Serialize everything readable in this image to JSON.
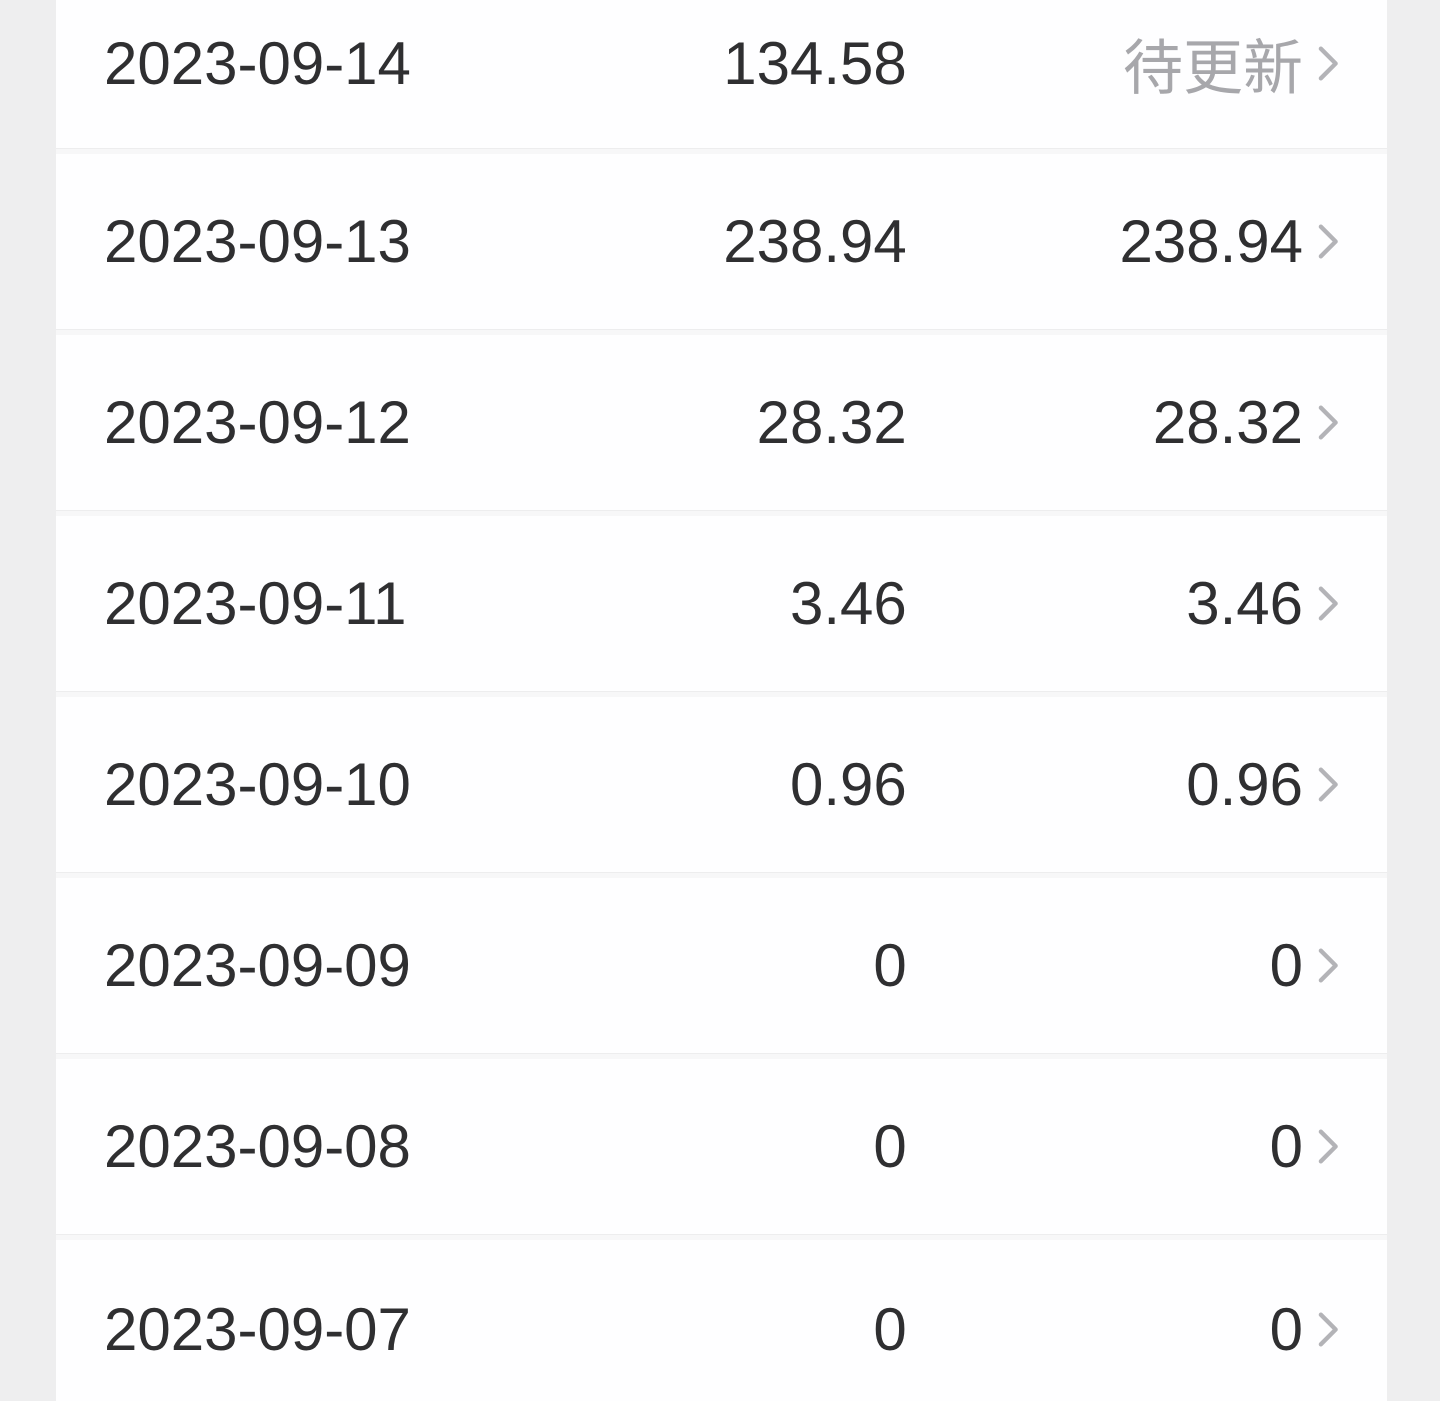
{
  "list": {
    "name": "daily-amount-list",
    "rows": [
      {
        "date": "2023-09-14",
        "amount": "134.58",
        "settled": "待更新",
        "pending": true
      },
      {
        "date": "2023-09-13",
        "amount": "238.94",
        "settled": "238.94",
        "pending": false
      },
      {
        "date": "2023-09-12",
        "amount": "28.32",
        "settled": "28.32",
        "pending": false
      },
      {
        "date": "2023-09-11",
        "amount": "3.46",
        "settled": "3.46",
        "pending": false
      },
      {
        "date": "2023-09-10",
        "amount": "0.96",
        "settled": "0.96",
        "pending": false
      },
      {
        "date": "2023-09-09",
        "amount": "0",
        "settled": "0",
        "pending": false
      },
      {
        "date": "2023-09-08",
        "amount": "0",
        "settled": "0",
        "pending": false
      },
      {
        "date": "2023-09-07",
        "amount": "0",
        "settled": "0",
        "pending": false
      }
    ],
    "icons": {
      "row_chevron": "chevron-right-icon"
    }
  },
  "colors": {
    "text_dark": "#2f2f31",
    "text_gray": "#a7a7ab",
    "chevron_gray": "#b3b3b7",
    "row_bg": "#fefeff",
    "gutter_bg": "#eeeeef",
    "sep_band": "#f7f7f8",
    "sep_line": "#ededee"
  }
}
